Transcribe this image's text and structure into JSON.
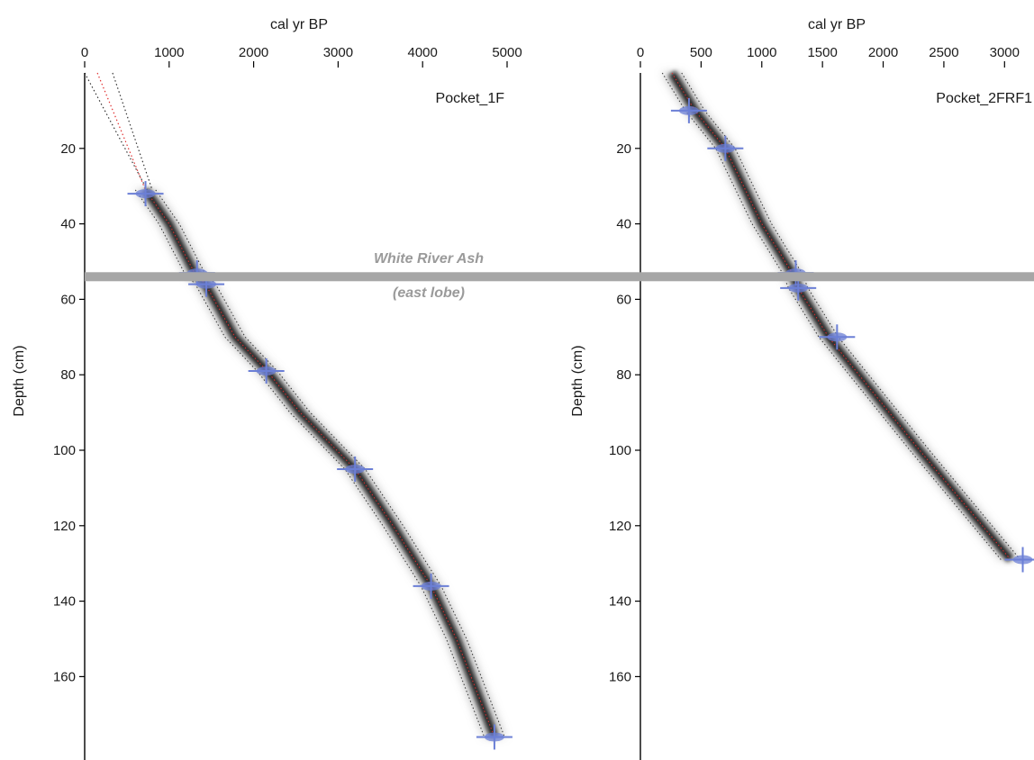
{
  "chart_data": [
    {
      "type": "line",
      "title": "Pocket_1F",
      "xlabel": "cal yr BP",
      "ylabel": "Depth (cm)",
      "xlim": [
        0,
        5000
      ],
      "ylim": [
        0,
        180
      ],
      "y_inverted": true,
      "x_axis_position": "top",
      "xticks": [
        "0",
        "1000",
        "2000",
        "3000",
        "4000",
        "5000"
      ],
      "yticks": [
        "20",
        "40",
        "60",
        "80",
        "100",
        "120",
        "140",
        "160"
      ],
      "age_depth_model": {
        "depth": [
          31,
          40,
          53,
          56,
          70,
          79,
          90,
          105,
          120,
          136,
          150,
          176
        ],
        "median_age": [
          720,
          1000,
          1300,
          1430,
          1780,
          2160,
          2550,
          3200,
          3650,
          4100,
          4400,
          4850
        ]
      },
      "extrapolation_to_surface": {
        "depth": [
          0,
          31
        ],
        "age_min": [
          0,
          740
        ],
        "age_median": [
          150,
          720
        ],
        "age_max": [
          330,
          800
        ]
      },
      "dated_samples": {
        "depth": [
          32,
          53,
          56,
          79,
          105,
          136,
          176
        ],
        "age": [
          720,
          1330,
          1440,
          2150,
          3200,
          4100,
          4850
        ]
      }
    },
    {
      "type": "line",
      "title": "Pocket_2FRF1",
      "xlabel": "cal yr BP",
      "ylabel": "Depth (cm)",
      "xlim": [
        0,
        3250
      ],
      "ylim": [
        0,
        180
      ],
      "y_inverted": true,
      "x_axis_position": "top",
      "xticks": [
        "0",
        "500",
        "1000",
        "1500",
        "2000",
        "2500",
        "3000"
      ],
      "yticks": [
        "20",
        "40",
        "60",
        "80",
        "100",
        "120",
        "140",
        "160"
      ],
      "age_depth_model": {
        "depth": [
          0,
          10,
          20,
          40,
          53,
          57,
          70,
          100,
          129
        ],
        "median_age": [
          260,
          450,
          700,
          1000,
          1250,
          1300,
          1550,
          2300,
          3050
        ]
      },
      "dated_samples": {
        "depth": [
          10,
          20,
          53,
          57,
          70,
          129
        ],
        "age": [
          400,
          700,
          1280,
          1300,
          1620,
          3150
        ]
      }
    }
  ],
  "tephra": {
    "label": "White River Ash",
    "sublabel": "(east lobe)",
    "depth": 54,
    "color": "#a6a6a6"
  }
}
